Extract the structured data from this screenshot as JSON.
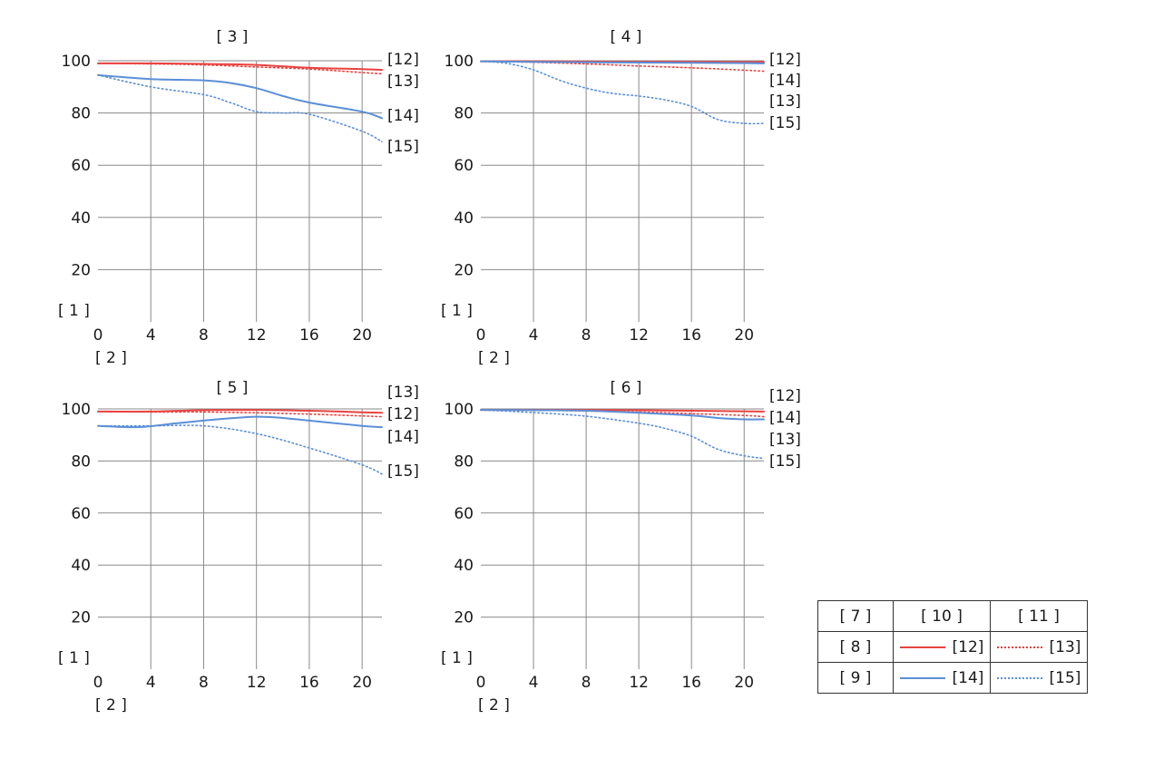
{
  "colors": {
    "red": "#e8423f",
    "blue": "#5b8fd6",
    "grid": "#8a8a8a"
  },
  "legend": {
    "header": [
      "[ 7 ]",
      "[ 10 ]",
      "[ 11 ]"
    ],
    "rows": [
      {
        "label": "[ 8 ]",
        "solid": "[12]",
        "dotted": "[13]",
        "color": "#e8423f"
      },
      {
        "label": "[ 9 ]",
        "solid": "[14]",
        "dotted": "[15]",
        "color": "#5b8fd6"
      }
    ]
  },
  "chart_data": [
    {
      "type": "line",
      "title": "[ 3 ]",
      "ylabel": "[ 1 ]",
      "xlabel": "[ 2 ]",
      "xlim": [
        0,
        21.5
      ],
      "ylim": [
        0,
        100
      ],
      "x_ticks": [
        0,
        4,
        8,
        12,
        16,
        20
      ],
      "y_ticks": [
        20,
        40,
        60,
        80,
        100
      ],
      "grid": true,
      "end_labels": [
        "[12]",
        "[13]",
        "[14]",
        "[15]"
      ],
      "series": [
        {
          "name": "[12]",
          "color": "#e8423f",
          "style": "solid",
          "x": [
            0,
            4,
            8,
            12,
            16,
            20,
            21.5
          ],
          "y": [
            99,
            99,
            98.8,
            98.4,
            97.3,
            96.8,
            96.5
          ]
        },
        {
          "name": "[13]",
          "color": "#e8423f",
          "style": "dotted",
          "x": [
            0,
            4,
            8,
            12,
            16,
            20,
            21.5
          ],
          "y": [
            99,
            98.8,
            98.4,
            97.6,
            96.8,
            95.5,
            95
          ]
        },
        {
          "name": "[14]",
          "color": "#5b8fd6",
          "style": "solid",
          "x": [
            0,
            4,
            8,
            10,
            12,
            14,
            16,
            20,
            21.5
          ],
          "y": [
            94.5,
            93,
            92.5,
            91.5,
            89.5,
            86.5,
            84,
            80.5,
            78
          ]
        },
        {
          "name": "[15]",
          "color": "#5b8fd6",
          "style": "dotted",
          "x": [
            0,
            4,
            8,
            10,
            12,
            14,
            16,
            20,
            21.5
          ],
          "y": [
            94.5,
            90,
            87,
            84,
            80.5,
            80,
            79.5,
            73,
            69
          ]
        }
      ]
    },
    {
      "type": "line",
      "title": "[ 4 ]",
      "ylabel": "[ 1 ]",
      "xlabel": "[ 2 ]",
      "xlim": [
        0,
        21.5
      ],
      "ylim": [
        0,
        100
      ],
      "x_ticks": [
        0,
        4,
        8,
        12,
        16,
        20
      ],
      "y_ticks": [
        20,
        40,
        60,
        80,
        100
      ],
      "grid": true,
      "end_labels": [
        "[12]",
        "[14]",
        "[13]",
        "[15]"
      ],
      "series": [
        {
          "name": "[12]",
          "color": "#e8423f",
          "style": "solid",
          "x": [
            0,
            4,
            8,
            12,
            16,
            20,
            21.5
          ],
          "y": [
            99.8,
            99.8,
            99.7,
            99.6,
            99.6,
            99.5,
            99.5
          ]
        },
        {
          "name": "[13]",
          "color": "#e8423f",
          "style": "dotted",
          "x": [
            0,
            4,
            8,
            12,
            16,
            20,
            21.5
          ],
          "y": [
            99.8,
            99.4,
            98.8,
            98,
            97.3,
            96.4,
            96
          ]
        },
        {
          "name": "[14]",
          "color": "#5b8fd6",
          "style": "solid",
          "x": [
            0,
            4,
            8,
            12,
            16,
            20,
            21.5
          ],
          "y": [
            99.8,
            99.6,
            99.4,
            99.3,
            99.2,
            99.1,
            99
          ]
        },
        {
          "name": "[15]",
          "color": "#5b8fd6",
          "style": "dotted",
          "x": [
            0,
            2,
            4,
            6,
            8,
            10,
            12,
            14,
            16,
            18,
            20,
            21.5
          ],
          "y": [
            99.8,
            99,
            96.5,
            92.5,
            89.5,
            87.5,
            86.5,
            85,
            82.5,
            77.5,
            76,
            76
          ]
        }
      ]
    },
    {
      "type": "line",
      "title": "[ 5 ]",
      "ylabel": "[ 1 ]",
      "xlabel": "[ 2 ]",
      "xlim": [
        0,
        21.5
      ],
      "ylim": [
        0,
        100
      ],
      "x_ticks": [
        0,
        4,
        8,
        12,
        16,
        20
      ],
      "y_ticks": [
        20,
        40,
        60,
        80,
        100
      ],
      "grid": true,
      "end_labels": [
        "[13]",
        "[12]",
        "[14]",
        "[15]"
      ],
      "series": [
        {
          "name": "[12]",
          "color": "#e8423f",
          "style": "solid",
          "x": [
            0,
            4,
            8,
            12,
            16,
            20,
            21.5
          ],
          "y": [
            99,
            99,
            99.5,
            99.6,
            99.3,
            98.7,
            98.5
          ]
        },
        {
          "name": "[13]",
          "color": "#e8423f",
          "style": "dotted",
          "x": [
            0,
            4,
            8,
            12,
            16,
            20,
            21.5
          ],
          "y": [
            99,
            98.8,
            98.8,
            98.5,
            98,
            97.3,
            97
          ]
        },
        {
          "name": "[14]",
          "color": "#5b8fd6",
          "style": "solid",
          "x": [
            0,
            3,
            6,
            9,
            12,
            14,
            16,
            20,
            21.5
          ],
          "y": [
            93.5,
            93,
            94.5,
            96,
            97,
            96.5,
            95.5,
            93.5,
            93
          ]
        },
        {
          "name": "[15]",
          "color": "#5b8fd6",
          "style": "dotted",
          "x": [
            0,
            4,
            8,
            12,
            16,
            20,
            21.5
          ],
          "y": [
            93.5,
            93.5,
            93.5,
            90.5,
            85,
            78.5,
            75
          ]
        }
      ]
    },
    {
      "type": "line",
      "title": "[ 6 ]",
      "ylabel": "[ 1 ]",
      "xlabel": "[ 2 ]",
      "xlim": [
        0,
        21.5
      ],
      "ylim": [
        0,
        100
      ],
      "x_ticks": [
        0,
        4,
        8,
        12,
        16,
        20
      ],
      "y_ticks": [
        20,
        40,
        60,
        80,
        100
      ],
      "grid": true,
      "end_labels": [
        "[12]",
        "[14]",
        "[13]",
        "[15]"
      ],
      "series": [
        {
          "name": "[12]",
          "color": "#e8423f",
          "style": "solid",
          "x": [
            0,
            4,
            8,
            12,
            16,
            20,
            21.5
          ],
          "y": [
            99.6,
            99.6,
            99.6,
            99.5,
            99.3,
            99.1,
            99
          ]
        },
        {
          "name": "[13]",
          "color": "#e8423f",
          "style": "dotted",
          "x": [
            0,
            4,
            8,
            12,
            16,
            20,
            21.5
          ],
          "y": [
            99.6,
            99.5,
            99.2,
            98.8,
            98.2,
            97.5,
            97
          ]
        },
        {
          "name": "[14]",
          "color": "#5b8fd6",
          "style": "solid",
          "x": [
            0,
            4,
            8,
            12,
            16,
            18,
            20,
            21.5
          ],
          "y": [
            99.6,
            99.5,
            99.3,
            98.5,
            97.5,
            96.5,
            96,
            96
          ]
        },
        {
          "name": "[15]",
          "color": "#5b8fd6",
          "style": "dotted",
          "x": [
            0,
            4,
            8,
            12,
            14,
            16,
            18,
            20,
            21.5
          ],
          "y": [
            99.6,
            98.6,
            97.2,
            94.5,
            92.5,
            89.5,
            84.5,
            82,
            81
          ]
        }
      ]
    }
  ]
}
